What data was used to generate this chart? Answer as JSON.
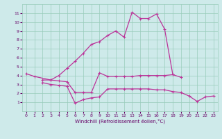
{
  "main_x": [
    0,
    1,
    3,
    4,
    5,
    6,
    7,
    8,
    9,
    10,
    11,
    12,
    13,
    14,
    15,
    16,
    17,
    18
  ],
  "main_y": [
    4.2,
    3.9,
    3.5,
    4.0,
    4.8,
    5.6,
    6.5,
    7.5,
    7.8,
    8.5,
    9.0,
    8.3,
    11.1,
    10.4,
    10.4,
    10.9,
    9.2,
    4.1
  ],
  "flat_x": [
    2,
    3,
    4,
    5,
    6,
    7,
    8,
    9,
    10,
    11,
    12,
    13,
    14,
    15,
    16,
    17,
    18,
    19
  ],
  "flat_y": [
    3.5,
    3.5,
    3.4,
    3.3,
    2.1,
    2.1,
    2.1,
    4.3,
    3.9,
    3.9,
    3.9,
    3.9,
    4.0,
    4.0,
    4.0,
    4.0,
    4.1,
    3.8
  ],
  "low_x": [
    2,
    3,
    4,
    5,
    6,
    7,
    8,
    9,
    10,
    11,
    12,
    13,
    14,
    15,
    16,
    17,
    18,
    19,
    20,
    21,
    22,
    23
  ],
  "low_y": [
    3.2,
    3.0,
    2.9,
    2.8,
    0.9,
    1.3,
    1.5,
    1.6,
    2.5,
    2.5,
    2.5,
    2.5,
    2.5,
    2.5,
    2.4,
    2.4,
    2.2,
    2.1,
    1.7,
    1.1,
    1.6,
    1.7
  ],
  "ylim": [
    0,
    12
  ],
  "xlim": [
    -0.5,
    23.5
  ],
  "yticks": [
    1,
    2,
    3,
    4,
    5,
    6,
    7,
    8,
    9,
    10,
    11
  ],
  "xticks": [
    0,
    1,
    2,
    3,
    4,
    5,
    6,
    7,
    8,
    9,
    10,
    11,
    12,
    13,
    14,
    15,
    16,
    17,
    18,
    19,
    20,
    21,
    22,
    23
  ],
  "xlabel": "Windchill (Refroidissement éolien,°C)",
  "line_color": "#bb3399",
  "bg_color": "#ceeaea",
  "grid_color": "#99ccbb",
  "tick_color": "#660066",
  "lw": 0.9,
  "ms": 2.5
}
